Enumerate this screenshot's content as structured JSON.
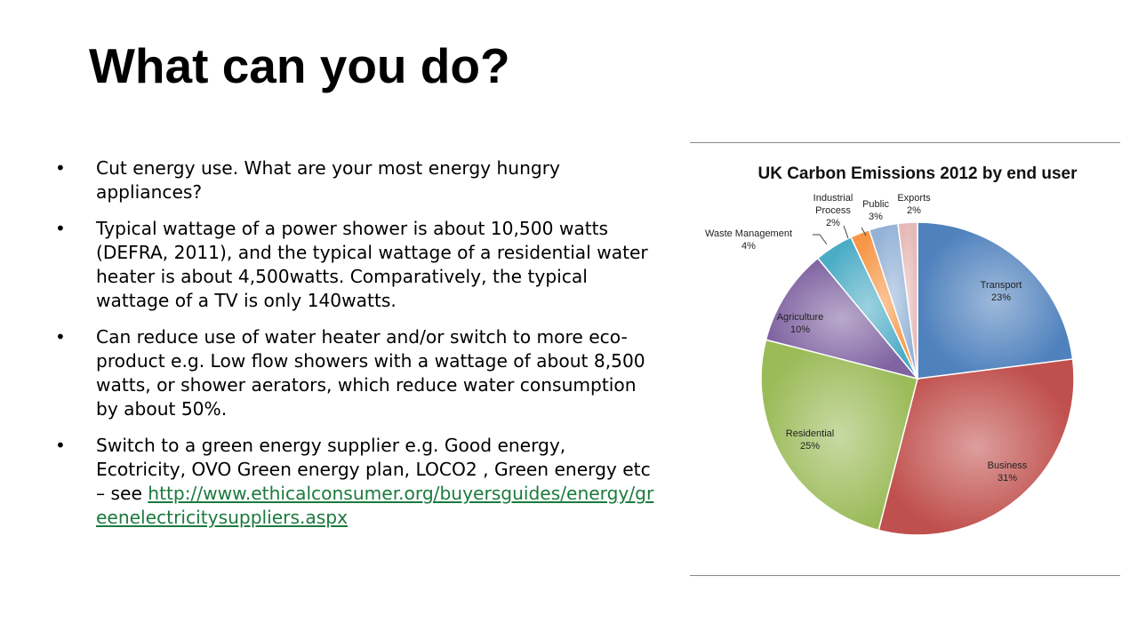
{
  "slide": {
    "title": "What can you do?",
    "bullets": [
      {
        "text": "Cut energy use. What are your most energy hungry appliances?"
      },
      {
        "text": "Typical wattage of a power shower is about 10,500 watts (DEFRA, 2011), and the typical wattage of a residential water heater is about 4,500watts. Comparatively, the typical wattage of a TV is only 140watts."
      },
      {
        "text": "Can reduce use of water heater and/or switch to more eco-product e.g. Low flow showers with a wattage of about 8,500 watts, or shower aerators, which reduce water consumption by about 50%."
      },
      {
        "text": "Switch to a green energy supplier e.g. Good energy, Ecotricity, OVO Green energy plan, LOCO2 , Green energy etc – see ",
        "link": "http://www.ethicalconsumer.org/buyersguides/energy/greenelectricitysuppliers.aspx"
      }
    ]
  },
  "chart_data": {
    "type": "pie",
    "title": "UK Carbon Emissions 2012 by end user",
    "slices": [
      {
        "label": "Transport",
        "value": 23,
        "display": "23%",
        "color": "#4f81bd"
      },
      {
        "label": "Business",
        "value": 31,
        "display": "31%",
        "color": "#c0504d"
      },
      {
        "label": "Residential",
        "value": 25,
        "display": "25%",
        "color": "#9bbb59"
      },
      {
        "label": "Agriculture",
        "value": 10,
        "display": "10%",
        "color": "#8064a2"
      },
      {
        "label": "Waste Management",
        "value": 4,
        "display": "4%",
        "color": "#4bacc6"
      },
      {
        "label": "Industrial Process",
        "value": 2,
        "display": "2%",
        "color": "#f79646"
      },
      {
        "label": "Public",
        "value": 3,
        "display": "3%",
        "color": "#95b3d7"
      },
      {
        "label": "Exports",
        "value": 2,
        "display": "2%",
        "color": "#e6b9b8"
      }
    ]
  }
}
